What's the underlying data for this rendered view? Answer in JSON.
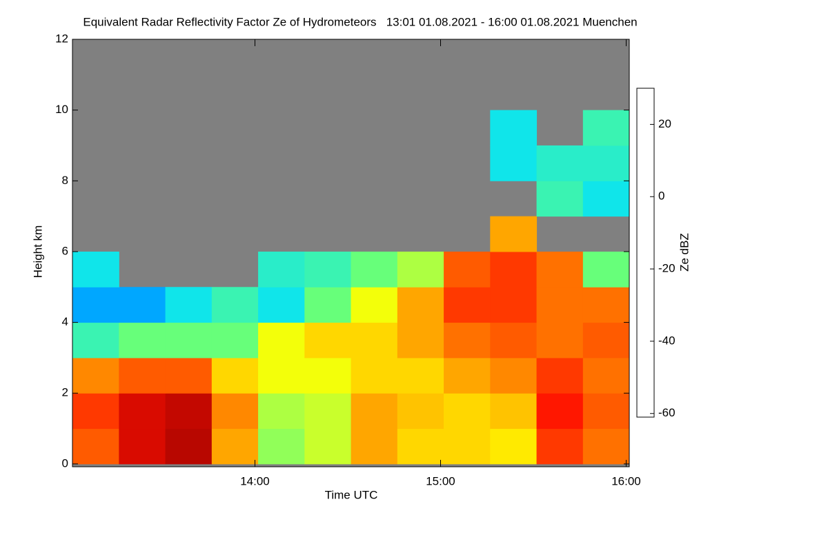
{
  "chart_data": {
    "type": "heatmap",
    "title": "Equivalent Radar Reflectivity Factor Ze of Hydrometeors   13:01 01.08.2021 - 16:00 01.08.2021 Muenchen",
    "x_label": "Time UTC",
    "y_label": "Height km",
    "colorbar_label": "Ze dBZ",
    "x": [
      13.142,
      13.392,
      13.642,
      13.892,
      14.142,
      14.392,
      14.642,
      14.892,
      15.142,
      15.392,
      15.642,
      15.892
    ],
    "y": [
      0.5,
      1.5,
      2.5,
      3.5,
      4.5,
      5.5,
      6.5,
      7.5,
      8.5,
      9.5,
      10.5,
      11.5
    ],
    "z": [
      [
        12,
        22,
        25,
        5,
        -12,
        -8,
        5,
        0,
        0,
        -2,
        15,
        10
      ],
      [
        15,
        22,
        24,
        8,
        -10,
        -8,
        5,
        2,
        0,
        2,
        18,
        12
      ],
      [
        8,
        12,
        12,
        0,
        -5,
        -5,
        0,
        0,
        5,
        8,
        15,
        10
      ],
      [
        -20,
        -15,
        -15,
        -15,
        -5,
        0,
        0,
        5,
        10,
        12,
        10,
        12
      ],
      [
        -30,
        -30,
        -25,
        -20,
        -25,
        -15,
        -5,
        5,
        15,
        15,
        10,
        10
      ],
      [
        -25,
        null,
        null,
        null,
        -22,
        -20,
        -15,
        -10,
        12,
        15,
        10,
        -15
      ],
      [
        null,
        null,
        null,
        null,
        null,
        null,
        null,
        null,
        null,
        5,
        null,
        null
      ],
      [
        null,
        null,
        null,
        null,
        null,
        null,
        null,
        null,
        null,
        null,
        -20,
        -25
      ],
      [
        null,
        null,
        null,
        null,
        null,
        null,
        null,
        null,
        null,
        -25,
        -22,
        -22
      ],
      [
        null,
        null,
        null,
        null,
        null,
        null,
        null,
        null,
        null,
        -25,
        null,
        -20
      ],
      [
        null,
        null,
        null,
        null,
        null,
        null,
        null,
        null,
        null,
        null,
        null,
        null
      ],
      [
        null,
        null,
        null,
        null,
        null,
        null,
        null,
        null,
        null,
        null,
        null,
        null
      ]
    ],
    "xlim": [
      13.0167,
      16.0167
    ],
    "xticks": [
      {
        "value": 14,
        "label": "14:00"
      },
      {
        "value": 15,
        "label": "15:00"
      },
      {
        "value": 16,
        "label": "16:00"
      }
    ],
    "ylim": [
      -0.08,
      12
    ],
    "yticks": [
      0,
      2,
      4,
      6,
      8,
      10,
      12
    ],
    "clim": [
      -61,
      30
    ],
    "cticks": [
      -60,
      -40,
      -20,
      0,
      20
    ],
    "colormap": [
      "#606070",
      "#0000a0",
      "#0010ff",
      "#00e0ff",
      "#60ff80",
      "#ffff00",
      "#ff9000",
      "#ff1000",
      "#800000"
    ],
    "nodata_color": "#808080"
  }
}
